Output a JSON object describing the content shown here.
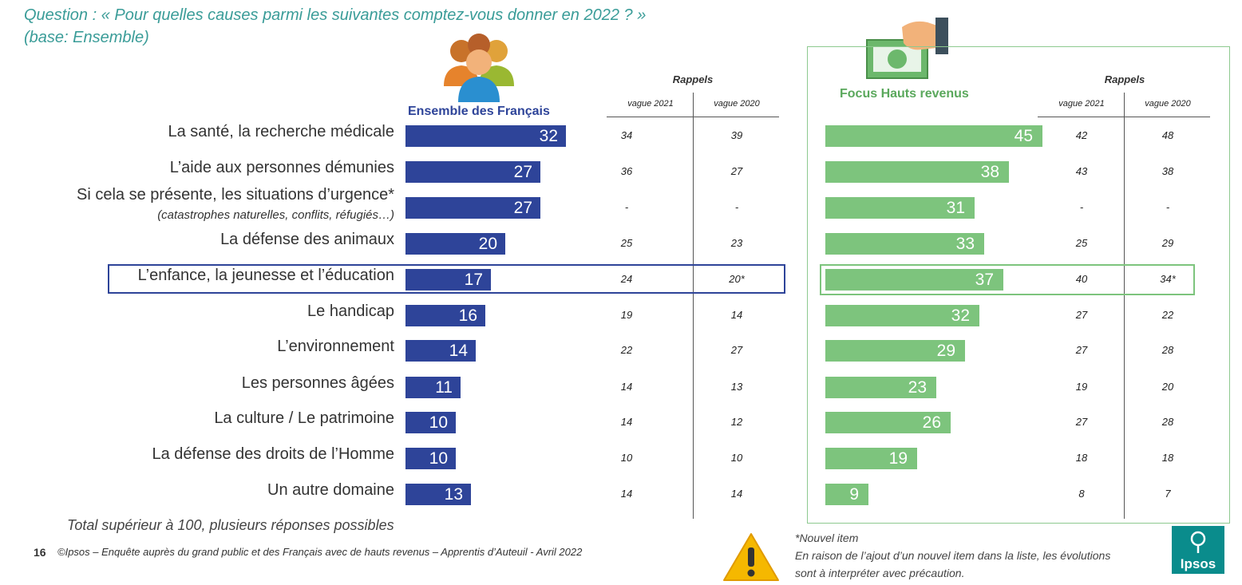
{
  "question": {
    "line1": "Question : « Pour quelles causes parmi les suivantes comptez-vous donner en 2022 ? »",
    "line2": "(base: Ensemble)"
  },
  "group_left_title": "Ensemble des Français",
  "group_right_title": "Focus Hauts revenus",
  "recall_title": "Rappels",
  "col_2021": "vague 2021",
  "col_2020": "vague 2020",
  "total_note": "Total supérieur à 100, plusieurs réponses possibles",
  "footer": {
    "page": "16",
    "text": "©Ipsos – Enquête auprès du grand public et des Français avec de hauts revenus – Apprentis d’Auteuil - Avril 2022"
  },
  "new_item_note": {
    "line1": "*Nouvel item",
    "line2": "En raison de l’ajout d’un nouvel item dans la liste, les évolutions",
    "line3": "sont à interpréter avec précaution."
  },
  "logo_text": "Ipsos",
  "colors": {
    "blue": "#2e4499",
    "green": "#7dc47d",
    "teal": "#3a9c98"
  },
  "chart_data": {
    "type": "bar",
    "orientation": "horizontal",
    "highlighted_category": "L’enfance, la jeunesse et l’éducation",
    "categories": [
      {
        "label": "La santé, la recherche médicale",
        "sub": "",
        "ensemble": 32,
        "ens_2021": "34",
        "ens_2020": "39",
        "hauts": 45,
        "hr_2021": "42",
        "hr_2020": "48"
      },
      {
        "label": "L’aide aux personnes démunies",
        "sub": "",
        "ensemble": 27,
        "ens_2021": "36",
        "ens_2020": "27",
        "hauts": 38,
        "hr_2021": "43",
        "hr_2020": "38"
      },
      {
        "label": "Si cela se présente, les situations d’urgence*",
        "sub": "(catastrophes naturelles, conflits, réfugiés…)",
        "ensemble": 27,
        "ens_2021": "-",
        "ens_2020": "-",
        "hauts": 31,
        "hr_2021": "-",
        "hr_2020": "-"
      },
      {
        "label": "La défense des animaux",
        "sub": "",
        "ensemble": 20,
        "ens_2021": "25",
        "ens_2020": "23",
        "hauts": 33,
        "hr_2021": "25",
        "hr_2020": "29"
      },
      {
        "label": "L’enfance, la jeunesse et l’éducation",
        "sub": "",
        "ensemble": 17,
        "ens_2021": "24",
        "ens_2020": "20*",
        "hauts": 37,
        "hr_2021": "40",
        "hr_2020": "34*"
      },
      {
        "label": "Le handicap",
        "sub": "",
        "ensemble": 16,
        "ens_2021": "19",
        "ens_2020": "14",
        "hauts": 32,
        "hr_2021": "27",
        "hr_2020": "22"
      },
      {
        "label": "L’environnement",
        "sub": "",
        "ensemble": 14,
        "ens_2021": "22",
        "ens_2020": "27",
        "hauts": 29,
        "hr_2021": "27",
        "hr_2020": "28"
      },
      {
        "label": "Les personnes âgées",
        "sub": "",
        "ensemble": 11,
        "ens_2021": "14",
        "ens_2020": "13",
        "hauts": 23,
        "hr_2021": "19",
        "hr_2020": "20"
      },
      {
        "label": "La culture / Le patrimoine",
        "sub": "",
        "ensemble": 10,
        "ens_2021": "14",
        "ens_2020": "12",
        "hauts": 26,
        "hr_2021": "27",
        "hr_2020": "28"
      },
      {
        "label": "La défense des droits de l’Homme",
        "sub": "",
        "ensemble": 10,
        "ens_2021": "10",
        "ens_2020": "10",
        "hauts": 19,
        "hr_2021": "18",
        "hr_2020": "18"
      },
      {
        "label": "Un autre domaine",
        "sub": "",
        "ensemble": 13,
        "ens_2021": "14",
        "ens_2020": "14",
        "hauts": 9,
        "hr_2021": "8",
        "hr_2020": "7"
      }
    ]
  }
}
